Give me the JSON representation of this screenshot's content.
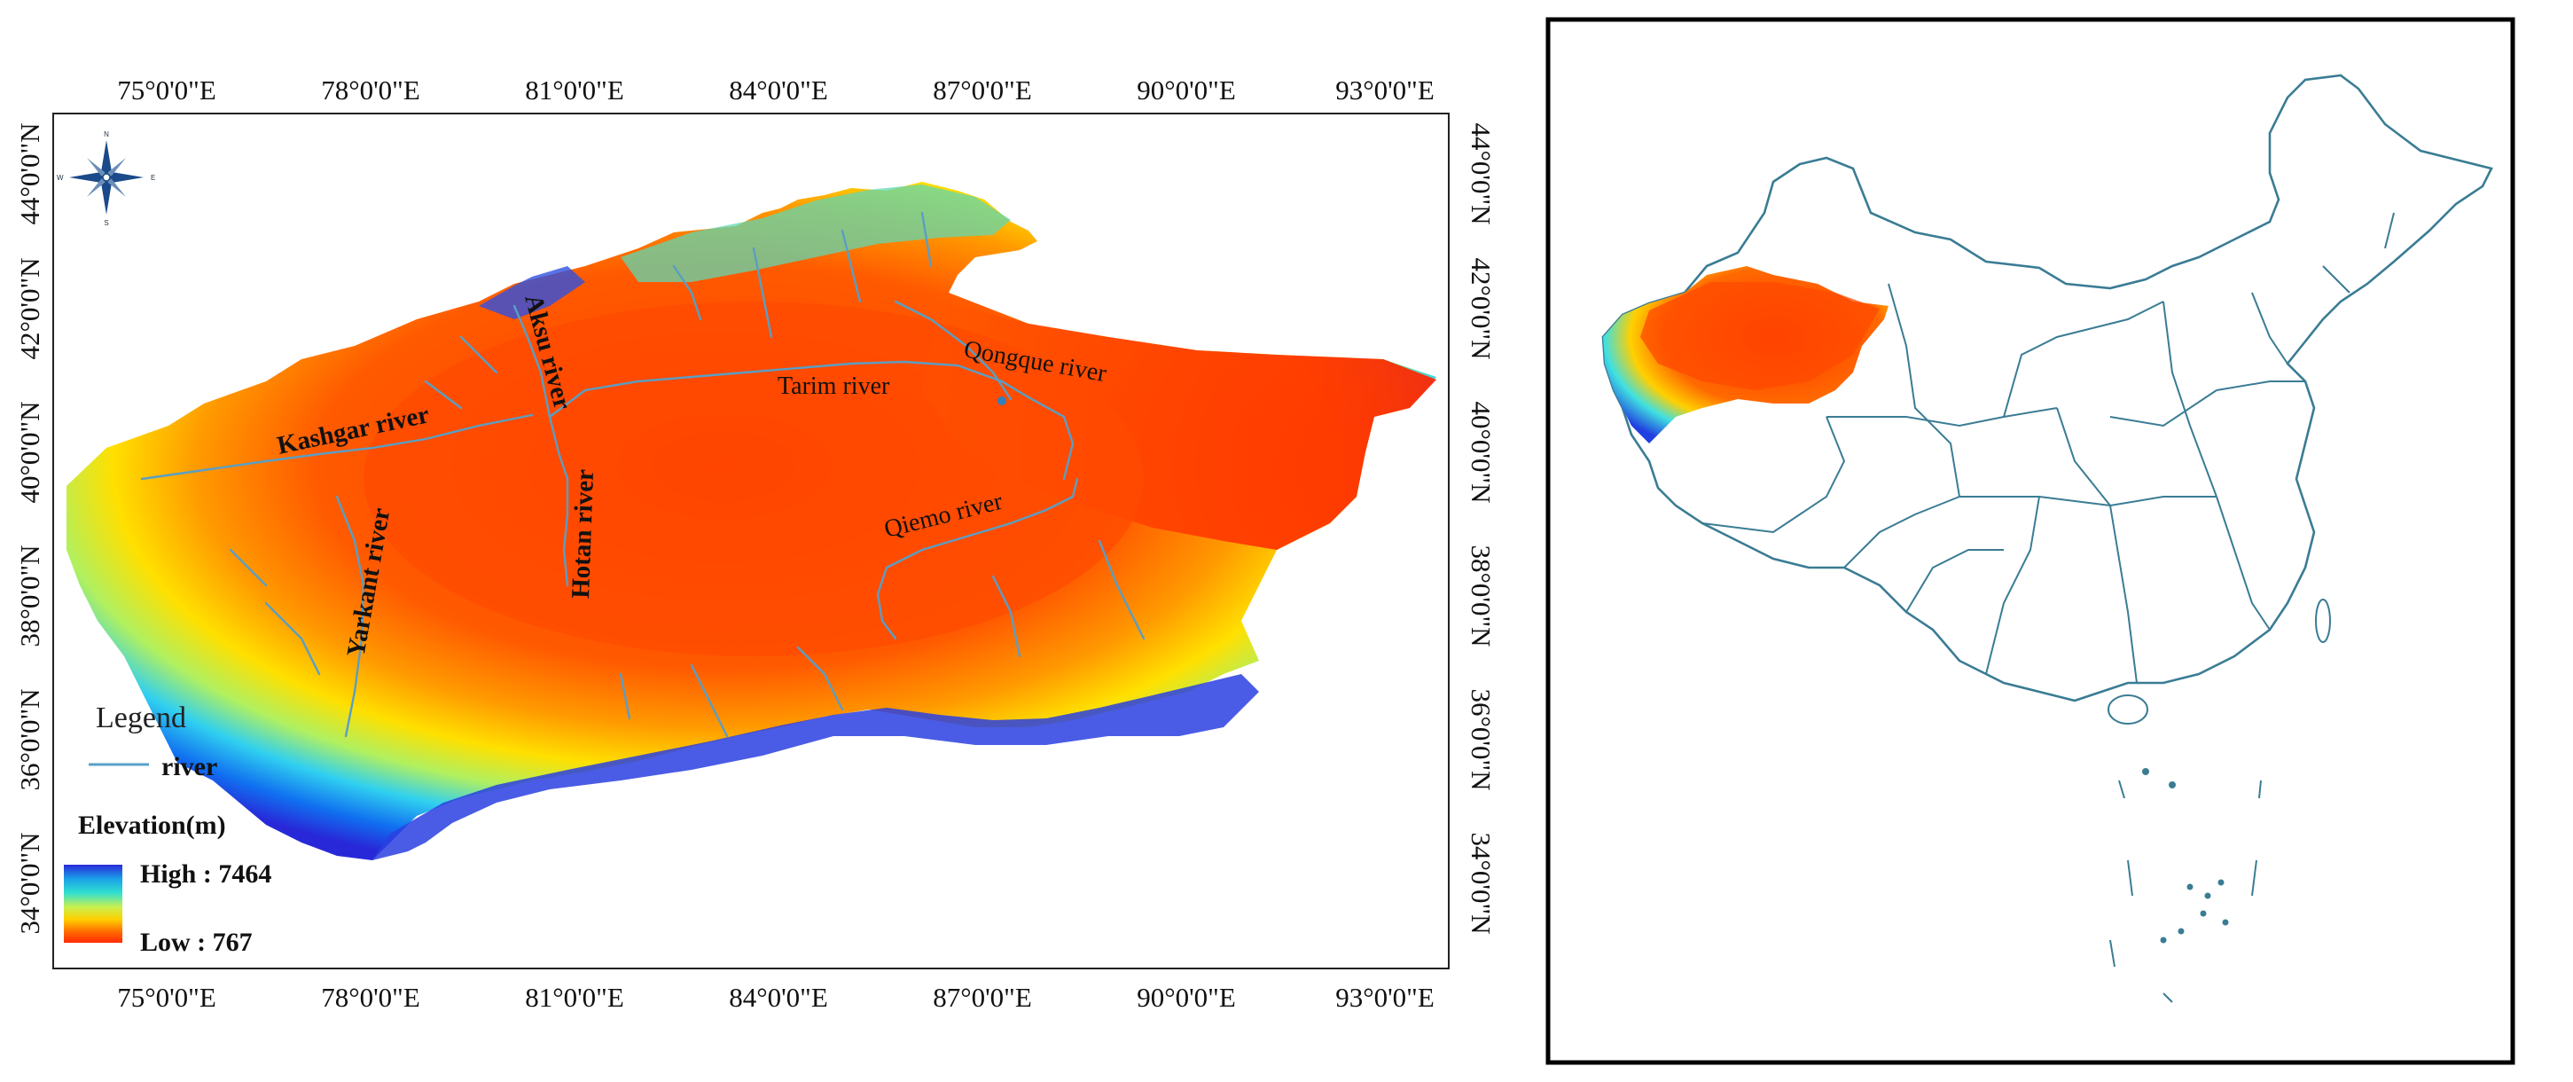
{
  "main_map": {
    "lon_ticks": [
      "75°0'0\"E",
      "78°0'0\"E",
      "81°0'0\"E",
      "84°0'0\"E",
      "87°0'0\"E",
      "90°0'0\"E",
      "93°0'0\"E"
    ],
    "lat_ticks": [
      "44°0'0\"N",
      "42°0'0\"N",
      "40°0'0\"N",
      "38°0'0\"N",
      "36°0'0\"N",
      "34°0'0\"N"
    ],
    "compass": {
      "icon": "compass-rose-icon",
      "n": "N",
      "s": "S",
      "e": "E",
      "w": "W"
    },
    "legend": {
      "title": "Legend",
      "river_label": "river",
      "river_color": "#5aa0c8",
      "elevation_title": "Elevation(m)",
      "high_label": "High : 7464",
      "low_label": "Low : 767",
      "gradient_colors": [
        "#2a2ad8",
        "#1aa0e8",
        "#30e0d0",
        "#c8f050",
        "#ffd000",
        "#ff6a00",
        "#ff2a00"
      ]
    },
    "rivers": {
      "kashgar": "Kashgar river",
      "yarkant": "Yarkant river",
      "aksu": "Aksu river",
      "hotan": "Hotan river",
      "tarim": "Tarim river",
      "qongque": "Qongque  river",
      "qiemo": "Qiemo river"
    },
    "colors": {
      "low": "#ff3000",
      "mid": "#ffb000",
      "high": "#2040e0",
      "river": "#5a9ec4"
    }
  },
  "inset_map": {
    "description_icon": "china-outline-icon",
    "outline_color": "#3a7c94",
    "highlight_colors": [
      "#ff3000",
      "#ffd000",
      "#20a0ff"
    ]
  }
}
